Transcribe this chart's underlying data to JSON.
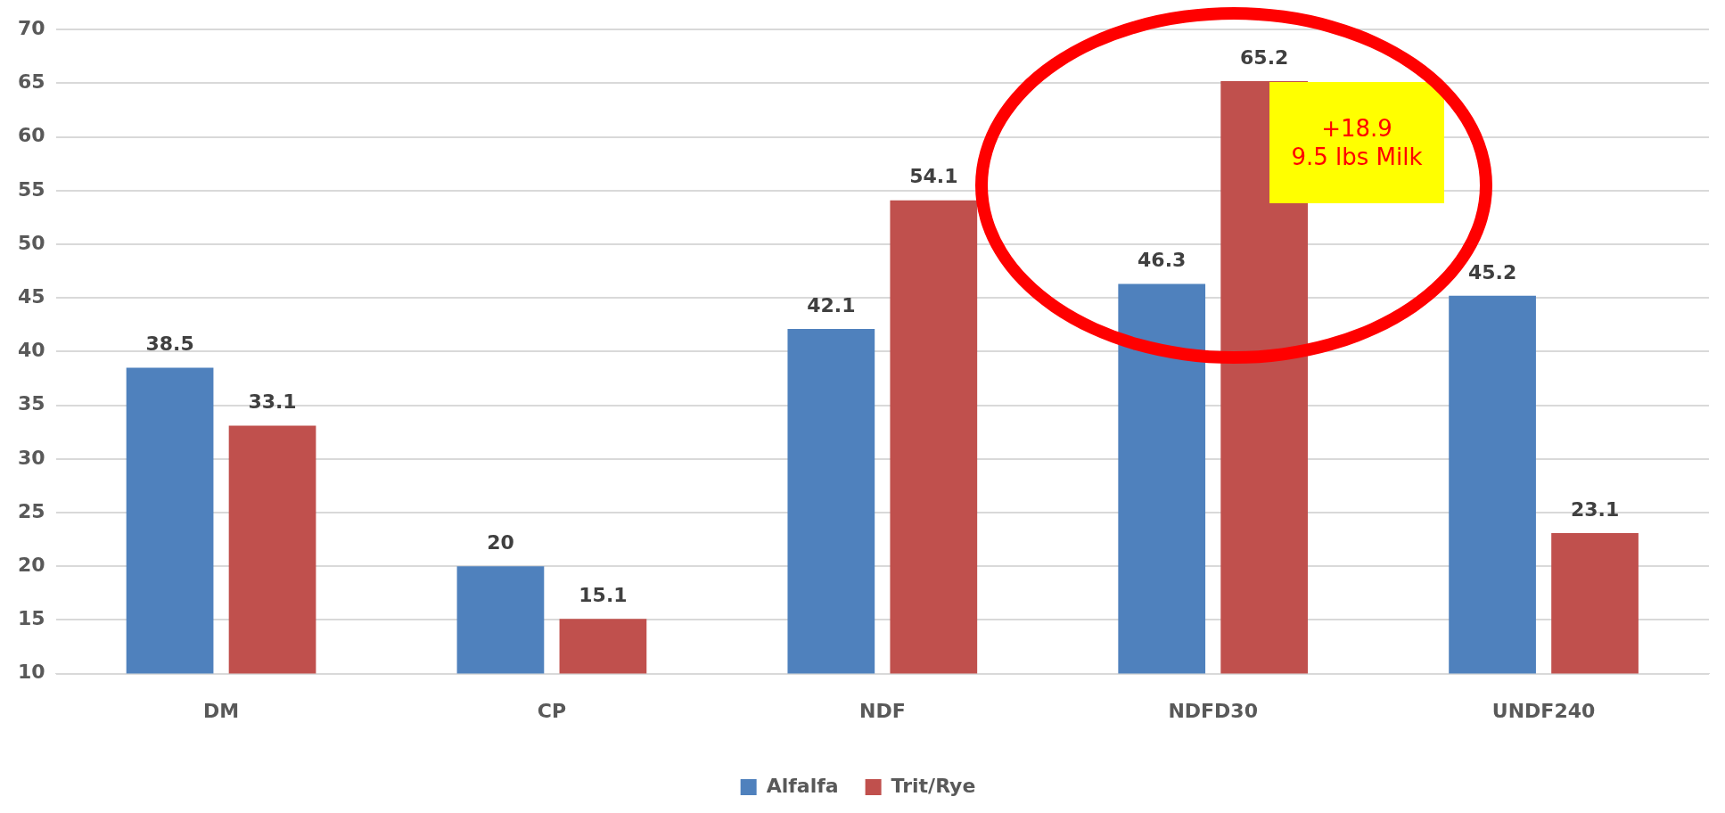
{
  "chart_data": {
    "type": "bar",
    "categories": [
      "DM",
      "CP",
      "NDF",
      "NDFD30",
      "UNDF240"
    ],
    "series": [
      {
        "name": "Alfalfa",
        "color": "#4f81bd",
        "values": [
          38.5,
          20,
          42.1,
          46.3,
          45.2
        ]
      },
      {
        "name": "Trit/Rye",
        "color": "#c0504d",
        "values": [
          33.1,
          15.1,
          54.1,
          65.2,
          23.1
        ]
      }
    ],
    "ylim": [
      10,
      70
    ],
    "yticks": [
      10,
      15,
      20,
      25,
      30,
      35,
      40,
      45,
      50,
      55,
      60,
      65,
      70
    ],
    "grid": "y",
    "legend": "bottom",
    "data_labels": true,
    "annotations": [
      "+18.9\n9.5 lbs Milk"
    ]
  }
}
